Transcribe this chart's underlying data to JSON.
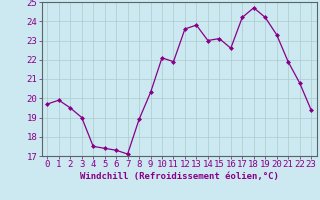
{
  "x": [
    0,
    1,
    2,
    3,
    4,
    5,
    6,
    7,
    8,
    9,
    10,
    11,
    12,
    13,
    14,
    15,
    16,
    17,
    18,
    19,
    20,
    21,
    22,
    23
  ],
  "y": [
    19.7,
    19.9,
    19.5,
    19.0,
    17.5,
    17.4,
    17.3,
    17.1,
    18.9,
    20.3,
    22.1,
    21.9,
    23.6,
    23.8,
    23.0,
    23.1,
    22.6,
    24.2,
    24.7,
    24.2,
    23.3,
    21.9,
    20.8,
    19.4
  ],
  "color": "#880088",
  "bg_color": "#cce8f0",
  "grid_color": "#aacccc",
  "xlabel": "Windchill (Refroidissement éolien,°C)",
  "ylim": [
    17,
    25
  ],
  "xlim_min": -0.5,
  "xlim_max": 23.5,
  "yticks": [
    17,
    18,
    19,
    20,
    21,
    22,
    23,
    24,
    25
  ],
  "xticks": [
    0,
    1,
    2,
    3,
    4,
    5,
    6,
    7,
    8,
    9,
    10,
    11,
    12,
    13,
    14,
    15,
    16,
    17,
    18,
    19,
    20,
    21,
    22,
    23
  ],
  "label_color": "#880088",
  "xlabel_fontsize": 6.5,
  "tick_fontsize": 6.5,
  "marker": "D",
  "marker_size": 2.0,
  "line_width": 0.9
}
